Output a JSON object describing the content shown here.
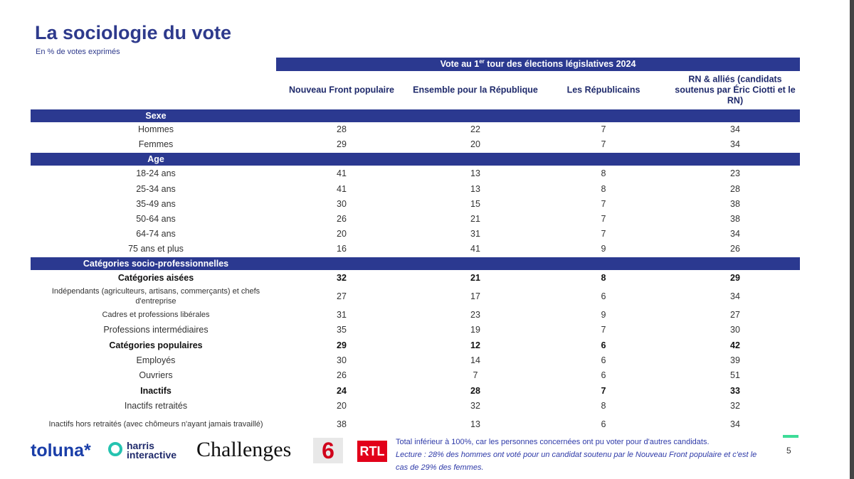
{
  "header": {
    "title": "La sociologie du vote",
    "subtitle": "En % de votes exprimés"
  },
  "table": {
    "banner": {
      "prefix": "Vote au 1",
      "sup": "er",
      "suffix": " tour des élections législatives 2024"
    },
    "columns": [
      "Nouveau Front populaire",
      "Ensemble pour la République",
      "Les Républicains",
      "RN & alliés (candidats soutenus par Éric Ciotti et le RN)"
    ],
    "sections": [
      {
        "title": "Sexe",
        "rows": [
          {
            "label": "Hommes",
            "values": [
              28,
              22,
              7,
              34
            ],
            "bold": false
          },
          {
            "label": "Femmes",
            "values": [
              29,
              20,
              7,
              34
            ],
            "bold": false
          }
        ]
      },
      {
        "title": "Age",
        "rows": [
          {
            "label": "18-24 ans",
            "values": [
              41,
              13,
              8,
              23
            ],
            "bold": false
          },
          {
            "label": "25-34 ans",
            "values": [
              41,
              13,
              8,
              28
            ],
            "bold": false
          },
          {
            "label": "35-49 ans",
            "values": [
              30,
              15,
              7,
              38
            ],
            "bold": false
          },
          {
            "label": "50-64 ans",
            "values": [
              26,
              21,
              7,
              38
            ],
            "bold": false
          },
          {
            "label": "64-74 ans",
            "values": [
              20,
              31,
              7,
              34
            ],
            "bold": false
          },
          {
            "label": "75 ans et plus",
            "values": [
              16,
              41,
              9,
              26
            ],
            "bold": false
          }
        ]
      },
      {
        "title": "Catégories socio-professionnelles",
        "rows": [
          {
            "label": "Catégories aisées",
            "values": [
              32,
              21,
              8,
              29
            ],
            "bold": true
          },
          {
            "label": "Indépendants (agriculteurs, artisans, commerçants) et chefs d'entreprise",
            "values": [
              27,
              17,
              6,
              34
            ],
            "bold": false
          },
          {
            "label": "Cadres et professions libérales",
            "values": [
              31,
              23,
              9,
              27
            ],
            "bold": false
          },
          {
            "label": "Professions intermédiaires",
            "values": [
              35,
              19,
              7,
              30
            ],
            "bold": false
          },
          {
            "label": "Catégories populaires",
            "values": [
              29,
              12,
              6,
              42
            ],
            "bold": true
          },
          {
            "label": "Employés",
            "values": [
              30,
              14,
              6,
              39
            ],
            "bold": false
          },
          {
            "label": "Ouvriers",
            "values": [
              26,
              7,
              6,
              51
            ],
            "bold": false
          },
          {
            "label": "Inactifs",
            "values": [
              24,
              28,
              7,
              33
            ],
            "bold": true
          },
          {
            "label": "Inactifs retraités",
            "values": [
              20,
              32,
              8,
              32
            ],
            "bold": false
          },
          {
            "label": "Inactifs hors retraités (avec chômeurs n'ayant jamais travaillé)",
            "values": [
              38,
              13,
              6,
              34
            ],
            "bold": false
          }
        ]
      }
    ]
  },
  "footer": {
    "logos": {
      "toluna": "toluna*",
      "harris": "harris",
      "interactive": "interactive",
      "challenges": "Challenges",
      "m6": "6",
      "rtl": "RTL"
    },
    "note": "Total inférieur à 100%, car les personnes concernées ont pu voter pour d'autres candidats.",
    "reading": "Lecture : 28% des hommes ont voté pour un candidat soutenu par le Nouveau Front populaire et c'est le cas de 29% des femmes.",
    "page": "5"
  }
}
